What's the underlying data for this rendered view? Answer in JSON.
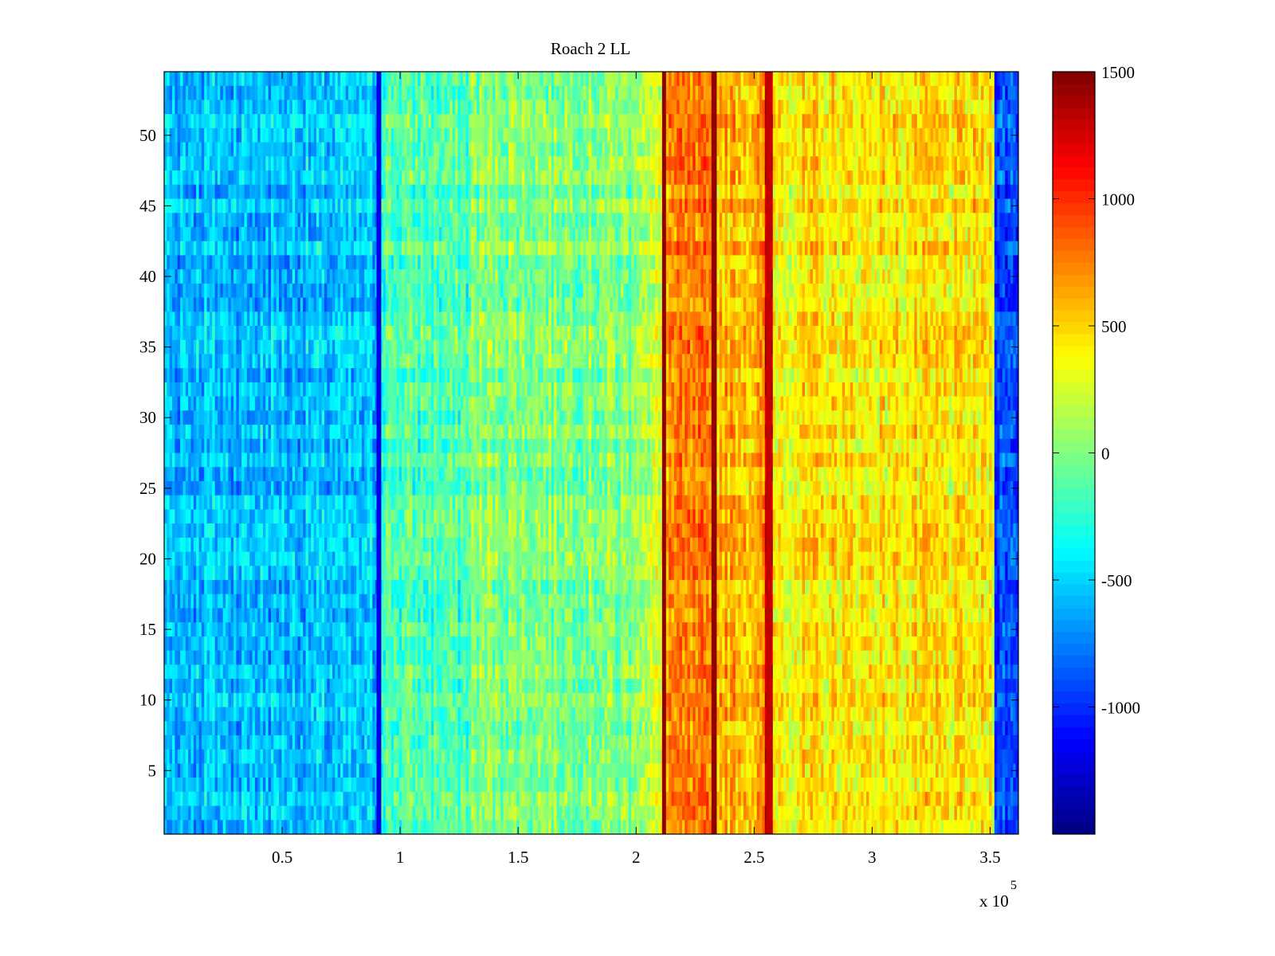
{
  "chart_data": {
    "type": "heatmap",
    "title": "Roach 2 LL",
    "xlabel": "",
    "ylabel": "",
    "x_multiplier_label": "x 10",
    "x_multiplier_exponent": "5",
    "xlim": [
      0,
      362000
    ],
    "ylim": [
      0.5,
      54.5
    ],
    "x_ticks": [
      0.5,
      1,
      1.5,
      2,
      2.5,
      3,
      3.5
    ],
    "x_tick_labels": [
      "0.5",
      "1",
      "1.5",
      "2",
      "2.5",
      "3",
      "3.5"
    ],
    "y_ticks": [
      5,
      10,
      15,
      20,
      25,
      30,
      35,
      40,
      45,
      50
    ],
    "y_tick_labels": [
      "5",
      "10",
      "15",
      "20",
      "25",
      "30",
      "35",
      "40",
      "45",
      "50"
    ],
    "rows": 54,
    "colormap": "jet",
    "color_range": [
      -1500,
      1500
    ],
    "colorbar_ticks": [
      1500,
      1000,
      500,
      0,
      -500,
      -1000
    ],
    "colorbar_tick_labels": [
      "1500",
      "1000",
      "500",
      "0",
      "-500",
      "-1000"
    ],
    "column_profile": [
      {
        "x_start": 0,
        "x_end": 90000,
        "level": -560
      },
      {
        "x_start": 90000,
        "x_end": 92000,
        "level": -1200
      },
      {
        "x_start": 92000,
        "x_end": 130000,
        "level": -150
      },
      {
        "x_start": 130000,
        "x_end": 200000,
        "level": 20
      },
      {
        "x_start": 200000,
        "x_end": 211000,
        "level": 200
      },
      {
        "x_start": 211000,
        "x_end": 212500,
        "level": 1450
      },
      {
        "x_start": 212500,
        "x_end": 232000,
        "level": 700
      },
      {
        "x_start": 232000,
        "x_end": 234000,
        "level": 1450
      },
      {
        "x_start": 234000,
        "x_end": 255000,
        "level": 600
      },
      {
        "x_start": 255000,
        "x_end": 257500,
        "level": 1300
      },
      {
        "x_start": 257500,
        "x_end": 352000,
        "level": 420
      },
      {
        "x_start": 352000,
        "x_end": 362000,
        "level": -900
      }
    ]
  }
}
